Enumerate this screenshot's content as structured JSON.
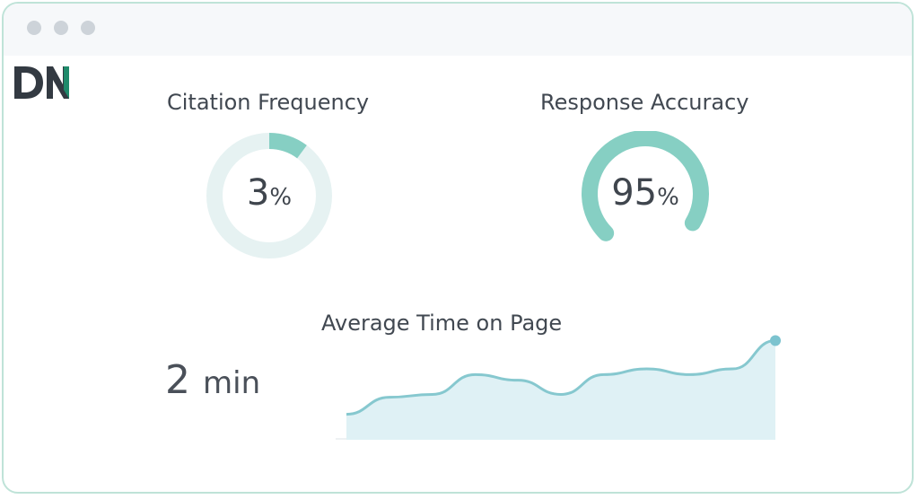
{
  "brand": {
    "logo_text": "DN",
    "accent_color": "#1f8a6b",
    "dark_color": "#333a42"
  },
  "window": {
    "controls": [
      "window-dot",
      "window-dot",
      "window-dot"
    ]
  },
  "metrics": {
    "citation": {
      "title": "Citation Frequency",
      "value": "3",
      "unit": "%",
      "fraction": 0.03
    },
    "accuracy": {
      "title": "Response Accuracy",
      "value": "95",
      "unit": "%",
      "fraction": 0.95
    },
    "time_on_page": {
      "title": "Average Time on Page",
      "value": "2",
      "unit": "min"
    }
  },
  "colors": {
    "accent": "#86cfc3",
    "track": "#e6f2f2",
    "line": "#86c8cf",
    "area": "#dff1f5"
  },
  "chart_data": {
    "type": "area",
    "title": "Average Time on Page",
    "x": [
      0,
      1,
      2,
      3,
      4,
      5,
      6,
      7,
      8,
      9,
      10
    ],
    "values": [
      0.9,
      1.5,
      1.6,
      2.3,
      2.1,
      1.6,
      2.3,
      2.5,
      2.3,
      2.5,
      3.5
    ],
    "ylim": [
      0,
      3.8
    ],
    "grid": false
  }
}
